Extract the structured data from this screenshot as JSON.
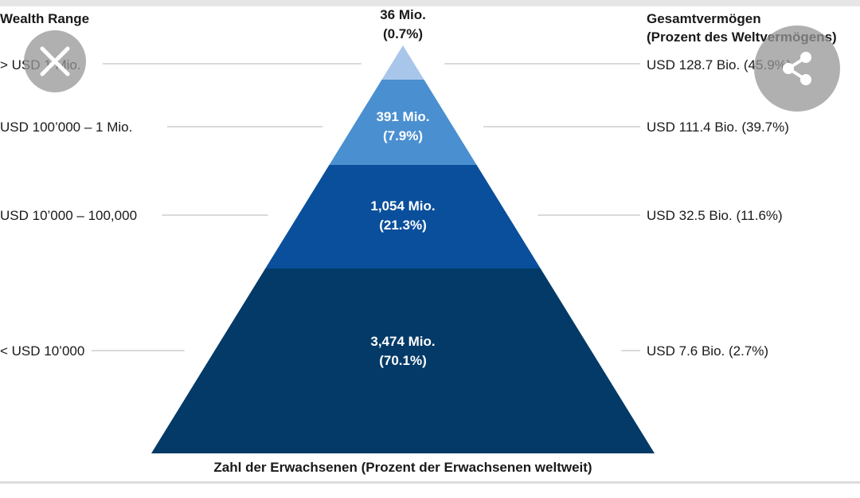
{
  "headers": {
    "left": "Wealth Range",
    "right_line1": "Gesamtvermögen",
    "right_line2": "(Prozent des Weltvermögens)",
    "bottom": "Zahl der Erwachsenen (Prozent der Erwachsenen weltweit)"
  },
  "chart_data": {
    "type": "pyramid",
    "tiers": [
      {
        "range": "> USD 1 Mio.",
        "adults": "36 Mio.",
        "adults_pct": "(0.7%)",
        "wealth": "USD 128.7 Bio. (45.9%)",
        "color": "#a8c6e9"
      },
      {
        "range": "USD 100’000 – 1 Mio.",
        "adults": "391 Mio.",
        "adults_pct": "(7.9%)",
        "wealth": "USD 111.4 Bio. (39.7%)",
        "color": "#4a8fd0"
      },
      {
        "range": "USD 10’000 – 100,000",
        "adults": "1,054 Mio.",
        "adults_pct": "(21.3%)",
        "wealth": "USD 32.5 Bio. (11.6%)",
        "color": "#0a4f9b"
      },
      {
        "range": "< USD 10’000",
        "adults": "3,474 Mio.",
        "adults_pct": "(70.1%)",
        "wealth": "USD 7.6 Bio. (2.7%)",
        "color": "#033a67"
      }
    ]
  },
  "controls": {
    "close_icon": "close-icon",
    "share_icon": "share-icon"
  }
}
